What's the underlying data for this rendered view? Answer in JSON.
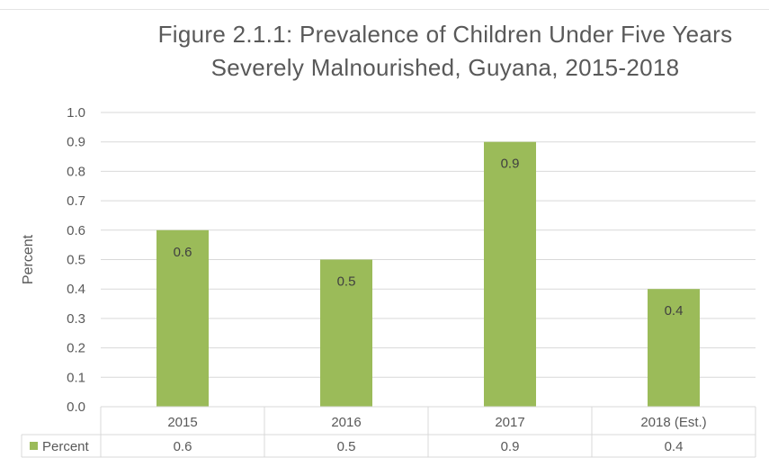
{
  "chart_data": {
    "type": "bar",
    "title": "Figure 2.1.1: Prevalence of Children Under Five Years",
    "subtitle": "Severely Malnourished, Guyana, 2015-2018",
    "ylabel": "Percent",
    "xlabel": "",
    "ylim": [
      0.0,
      1.0
    ],
    "y_ticks": [
      "0.0",
      "0.1",
      "0.2",
      "0.3",
      "0.4",
      "0.5",
      "0.6",
      "0.7",
      "0.8",
      "0.9",
      "1.0"
    ],
    "grid": true,
    "categories": [
      "2015",
      "2016",
      "2017",
      "2018 (Est.)"
    ],
    "series": [
      {
        "name": "Percent",
        "values": [
          0.6,
          0.5,
          0.9,
          0.4
        ],
        "labels": [
          "0.6",
          "0.5",
          "0.9",
          "0.4"
        ],
        "color": "#9bbb59"
      }
    ],
    "data_table": true,
    "legend": "data-table"
  },
  "colors": {
    "bar": "#9bbb59",
    "grid": "#d9d9d9",
    "text": "#595959"
  }
}
